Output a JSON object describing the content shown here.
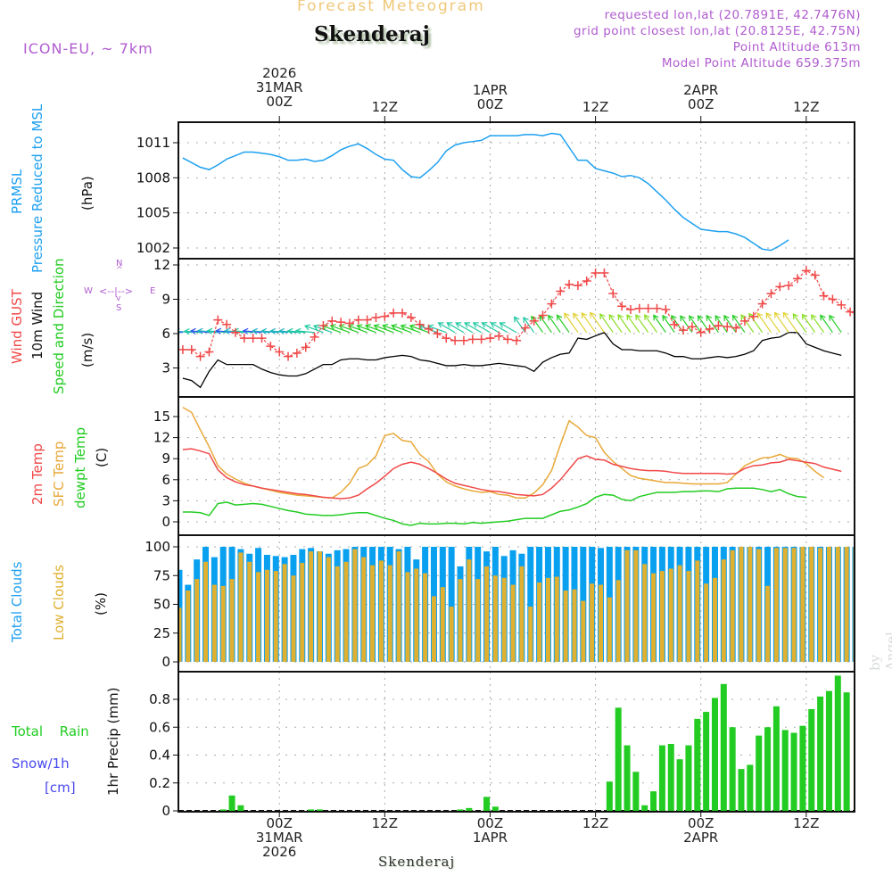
{
  "header": {
    "title": "Forecast Meteogram",
    "location": "Skenderaj",
    "model": "ICON-EU, ~ 7km",
    "requested": "requested lon,lat (20.7891E, 42.7476N)",
    "grid_point": "grid point closest lon,lat (20.8125E, 42.75N)",
    "point_altitude": "Point Altitude 613m",
    "model_altitude": "Model Point Altitude 659.375m",
    "credit": "by Angel",
    "bottom_location": "Skenderaj"
  },
  "colors": {
    "pressure": "#1ea0f0",
    "gust": "#f04848",
    "wind10m": "#000000",
    "temp2m": "#f04848",
    "sfc_temp": "#e8a838",
    "dewpt": "#22cc22",
    "total_clouds": "#0aa0f0",
    "low_clouds": "#e0b030",
    "rain": "#22cc22",
    "snow": "#4848f0",
    "legend_purple": "#b05ccf"
  },
  "time_axis": {
    "top_labels": [
      {
        "lines": [
          "2026",
          "31MAR",
          "00Z"
        ],
        "hour": 0
      },
      {
        "lines": [
          "12Z"
        ],
        "hour": 12
      },
      {
        "lines": [
          "1APR",
          "00Z"
        ],
        "hour": 24
      },
      {
        "lines": [
          "12Z"
        ],
        "hour": 36
      },
      {
        "lines": [
          "2APR",
          "00Z"
        ],
        "hour": 48
      },
      {
        "lines": [
          "12Z"
        ],
        "hour": 60
      }
    ],
    "bottom_labels": [
      {
        "lines": [
          "00Z",
          "31MAR",
          "2026"
        ],
        "hour": 0
      },
      {
        "lines": [
          "12Z"
        ],
        "hour": 12
      },
      {
        "lines": [
          "00Z",
          "1APR"
        ],
        "hour": 24
      },
      {
        "lines": [
          "12Z"
        ],
        "hour": 36
      },
      {
        "lines": [
          "00Z",
          "2APR"
        ],
        "hour": 48
      },
      {
        "lines": [
          "12Z"
        ],
        "hour": 60
      }
    ],
    "hour_range": [
      -11.5,
      65.5
    ]
  },
  "panel_labels": {
    "pressure": {
      "l1": "PRMSL",
      "l2": "Pressure Reduced to MSL",
      "unit": "(hPa)"
    },
    "wind": {
      "l1": "Wind GUST",
      "l2": "10m Wind",
      "l3": "Speed and Direction",
      "unit": "(m/s)",
      "compass": {
        "n": "N",
        "s": "S",
        "w": "W",
        "e": "E",
        "arrows": "<--|-->"
      }
    },
    "temp": {
      "l1": "2m Temp",
      "l2": "SFC Temp",
      "l3": "dewpt Temp",
      "unit": "(C)"
    },
    "clouds": {
      "l1": "Total Clouds",
      "l2": "Low Clouds",
      "unit": "(%)"
    },
    "precip": {
      "l1": "Total  Rain",
      "l2": "Snow/1h",
      "l3": "[cm]",
      "unit": "1hr Precip (mm)"
    }
  },
  "chart_data": [
    {
      "type": "line",
      "title": "PRMSL Pressure Reduced to MSL",
      "ylabel": "(hPa)",
      "ylim": [
        1001,
        1012.9
      ],
      "yticks": [
        1002,
        1005,
        1008,
        1011
      ],
      "grid": true,
      "x_hours_start": -11,
      "x_hours_step": 1,
      "series": [
        {
          "name": "PRMSL",
          "values": [
            1009.7,
            1009.3,
            1008.9,
            1008.7,
            1009.1,
            1009.6,
            1009.9,
            1010.2,
            1010.2,
            1010.1,
            1010.0,
            1009.8,
            1009.5,
            1009.5,
            1009.6,
            1009.4,
            1009.5,
            1009.9,
            1010.4,
            1010.7,
            1010.9,
            1010.5,
            1010.0,
            1009.6,
            1009.5,
            1008.7,
            1008.1,
            1008.0,
            1008.6,
            1009.3,
            1010.3,
            1010.8,
            1011.0,
            1011.1,
            1011.2,
            1011.6,
            1011.6,
            1011.6,
            1011.6,
            1011.7,
            1011.7,
            1011.6,
            1011.8,
            1011.7,
            1010.6,
            1009.5,
            1009.5,
            1008.8,
            1008.6,
            1008.4,
            1008.1,
            1008.2,
            1008.0,
            1007.5,
            1006.8,
            1006.1,
            1005.3,
            1004.6,
            1004.1,
            1003.6,
            1003.5,
            1003.4,
            1003.4,
            1003.2,
            1002.9,
            1002.4,
            1001.9,
            1001.8,
            1002.2,
            1002.7
          ]
        }
      ]
    },
    {
      "type": "line",
      "title": "Wind GUST / 10m Wind Speed and Direction",
      "ylabel": "(m/s)",
      "ylim": [
        0,
        12.5
      ],
      "yticks": [
        3,
        6,
        9,
        12
      ],
      "grid": true,
      "x_hours_start": -11,
      "x_hours_step": 1,
      "series": [
        {
          "name": "Wind GUST",
          "values": [
            4.6,
            4.6,
            4.0,
            4.4,
            7.2,
            6.8,
            6.1,
            5.6,
            5.6,
            5.6,
            4.9,
            4.4,
            4.0,
            4.3,
            4.8,
            5.7,
            6.7,
            7.1,
            7.0,
            6.9,
            7.2,
            7.2,
            7.4,
            7.5,
            7.8,
            7.8,
            7.4,
            6.8,
            6.4,
            6.0,
            5.6,
            5.4,
            5.4,
            5.5,
            5.5,
            5.6,
            5.8,
            5.5,
            5.4,
            6.5,
            7.1,
            7.6,
            8.6,
            9.7,
            10.3,
            10.2,
            10.6,
            11.3,
            11.3,
            9.5,
            8.4,
            8.1,
            8.2,
            8.2,
            8.2,
            8.1,
            6.8,
            6.3,
            6.6,
            6.1,
            6.4,
            6.7,
            6.6,
            6.5,
            7.1,
            7.5,
            8.6,
            9.5,
            10.1,
            10.2,
            10.8,
            11.5,
            11.1,
            9.3,
            9.0,
            8.5,
            7.9,
            7.6
          ]
        },
        {
          "name": "10m Wind",
          "values": [
            2.1,
            1.9,
            1.3,
            2.7,
            3.7,
            3.3,
            3.3,
            3.3,
            3.3,
            2.9,
            2.6,
            2.4,
            2.3,
            2.3,
            2.5,
            2.9,
            3.3,
            3.3,
            3.7,
            3.8,
            3.8,
            3.7,
            3.7,
            3.9,
            4.0,
            4.1,
            4.0,
            3.7,
            3.6,
            3.4,
            3.2,
            3.2,
            3.3,
            3.2,
            3.2,
            3.3,
            3.4,
            3.3,
            3.2,
            3.1,
            2.7,
            3.5,
            3.9,
            4.2,
            4.3,
            5.6,
            5.5,
            5.8,
            6.1,
            5.1,
            4.6,
            4.6,
            4.5,
            4.5,
            4.5,
            4.3,
            4.0,
            4.0,
            3.8,
            3.8,
            3.9,
            4.0,
            3.9,
            4.0,
            4.2,
            4.5,
            5.4,
            5.6,
            5.7,
            6.1,
            6.1,
            5.1,
            4.8,
            4.5,
            4.3,
            4.1
          ]
        }
      ],
      "wind_arrows": "10m wind direction arrows (mostly NE->SW flow), colored by speed"
    },
    {
      "type": "line",
      "title": "2m Temp / SFC Temp / dewpt Temp",
      "ylabel": "(C)",
      "ylim": [
        -1.8,
        17.3
      ],
      "yticks": [
        0,
        3,
        6,
        9,
        12,
        15
      ],
      "grid": true,
      "x_hours_start": -11,
      "x_hours_step": 1,
      "series": [
        {
          "name": "2m Temp",
          "values": [
            10.3,
            10.4,
            10.1,
            9.7,
            7.4,
            6.3,
            5.7,
            5.3,
            5.1,
            4.8,
            4.6,
            4.4,
            4.2,
            4.0,
            3.9,
            3.7,
            3.5,
            3.4,
            3.3,
            3.4,
            3.8,
            4.7,
            5.5,
            6.5,
            7.6,
            8.2,
            8.5,
            8.2,
            7.6,
            6.9,
            6.1,
            5.5,
            5.2,
            4.9,
            4.6,
            4.4,
            4.3,
            4.1,
            3.9,
            3.8,
            3.7,
            3.9,
            4.8,
            6.0,
            7.5,
            9.0,
            9.4,
            8.9,
            8.8,
            8.2,
            7.9,
            7.6,
            7.4,
            7.3,
            7.3,
            7.2,
            7.0,
            6.9,
            6.9,
            6.9,
            6.9,
            6.9,
            6.8,
            6.9,
            7.6,
            8.0,
            8.1,
            8.4,
            8.5,
            8.9,
            8.7,
            8.5,
            8.3,
            7.8,
            7.5,
            7.2
          ]
        },
        {
          "name": "SFC Temp",
          "values": [
            16.3,
            15.6,
            13.1,
            10.7,
            8.0,
            6.8,
            6.1,
            5.5,
            5.1,
            4.8,
            4.5,
            4.2,
            4.0,
            3.8,
            3.7,
            3.6,
            3.5,
            3.4,
            4.2,
            5.5,
            7.6,
            8.1,
            9.4,
            12.3,
            12.6,
            11.6,
            11.4,
            9.6,
            8.6,
            6.8,
            5.7,
            5.1,
            4.7,
            4.4,
            4.2,
            4.3,
            3.9,
            3.8,
            3.4,
            3.4,
            4.1,
            5.3,
            7.3,
            11.0,
            14.4,
            13.5,
            12.3,
            12.0,
            9.9,
            8.6,
            7.6,
            6.6,
            6.2,
            6.0,
            5.8,
            5.6,
            5.6,
            5.5,
            5.4,
            5.4,
            5.4,
            5.4,
            5.6,
            6.8,
            8.0,
            8.6,
            9.1,
            9.2,
            9.6,
            9.1,
            9.0,
            8.3,
            7.2,
            6.3
          ]
        },
        {
          "name": "dewpt Temp",
          "values": [
            1.4,
            1.4,
            1.3,
            0.9,
            2.6,
            2.8,
            2.4,
            2.5,
            2.6,
            2.5,
            2.2,
            1.9,
            1.6,
            1.4,
            1.1,
            1.0,
            0.9,
            0.9,
            1.0,
            1.2,
            1.3,
            1.3,
            0.9,
            0.5,
            0.2,
            -0.3,
            -0.5,
            -0.2,
            -0.3,
            -0.3,
            -0.2,
            -0.2,
            -0.3,
            -0.1,
            -0.2,
            -0.1,
            0.0,
            0.1,
            0.3,
            0.5,
            0.5,
            0.5,
            1.0,
            1.5,
            1.7,
            2.1,
            2.6,
            3.5,
            3.9,
            3.8,
            3.2,
            3.0,
            3.6,
            3.9,
            4.2,
            4.2,
            4.2,
            4.3,
            4.3,
            4.4,
            4.4,
            4.3,
            4.7,
            4.8,
            4.8,
            4.8,
            4.6,
            4.3,
            4.6,
            4.0,
            3.6,
            3.5
          ]
        }
      ]
    },
    {
      "type": "bar",
      "title": "Total Clouds / Low Clouds",
      "ylabel": "(%)",
      "ylim": [
        0,
        100
      ],
      "yticks": [
        0,
        25,
        50,
        75,
        100
      ],
      "grid": true,
      "x_hours_start": -11.4,
      "x_hours_step": 1,
      "series": [
        {
          "name": "Total Clouds",
          "values": [
            80,
            67,
            89,
            100,
            91,
            100,
            100,
            98,
            94,
            99,
            93,
            92,
            91,
            93,
            98,
            99,
            96,
            94,
            97,
            98,
            100,
            100,
            100,
            100,
            100,
            98,
            100,
            89,
            100,
            100,
            100,
            100,
            83,
            100,
            100,
            96,
            100,
            92,
            97,
            94,
            100,
            100,
            100,
            100,
            100,
            100,
            100,
            100,
            99,
            100,
            100,
            100,
            100,
            100,
            100,
            100,
            100,
            100,
            100,
            100,
            100,
            100,
            100,
            100,
            100,
            100,
            100,
            100,
            100,
            100,
            100,
            100,
            100,
            100,
            100,
            100,
            100,
            100
          ]
        },
        {
          "name": "Low Clouds",
          "values": [
            47,
            62,
            72,
            87,
            67,
            66,
            72,
            95,
            87,
            78,
            80,
            79,
            85,
            75,
            86,
            96,
            96,
            91,
            83,
            87,
            98,
            91,
            84,
            88,
            84,
            96,
            78,
            81,
            77,
            57,
            65,
            48,
            72,
            89,
            72,
            83,
            75,
            73,
            67,
            83,
            48,
            69,
            73,
            74,
            62,
            63,
            53,
            68,
            67,
            56,
            71,
            97,
            97,
            85,
            77,
            79,
            81,
            84,
            79,
            88,
            68,
            73,
            89,
            97,
            100,
            100,
            98,
            66,
            99,
            99,
            99,
            100,
            100,
            99,
            100,
            100,
            100,
            100
          ]
        }
      ]
    },
    {
      "type": "bar",
      "title": "Total Rain / Snow 1h",
      "ylabel": "1hr Precip (mm)",
      "ylim": [
        0,
        1.0
      ],
      "yticks": [
        0,
        0.2,
        0.4,
        0.6,
        0.8
      ],
      "grid": true,
      "x_hours_start": -11.4,
      "x_hours_step": 1,
      "series": [
        {
          "name": "Total Rain",
          "values": [
            0,
            0,
            0,
            0,
            0,
            0.01,
            0.11,
            0.04,
            0,
            0,
            0,
            0,
            0,
            0,
            0,
            0.01,
            0.01,
            0,
            0,
            0,
            0,
            0,
            0,
            0,
            0,
            0,
            0,
            0,
            0,
            0,
            0,
            0,
            0.01,
            0.02,
            0,
            0.1,
            0.03,
            0,
            0,
            0,
            0,
            0,
            0,
            0,
            0,
            0,
            0,
            0,
            0,
            0.21,
            0.74,
            0.47,
            0.28,
            0.04,
            0.14,
            0.47,
            0.48,
            0.37,
            0.47,
            0.66,
            0.71,
            0.81,
            0.91,
            0.6,
            0.3,
            0.33,
            0.54,
            0.6,
            0.75,
            0.58,
            0.56,
            0.61,
            0.73,
            0.82,
            0.86,
            0.97,
            0.85
          ]
        },
        {
          "name": "Snow/1h",
          "values": []
        }
      ]
    }
  ]
}
